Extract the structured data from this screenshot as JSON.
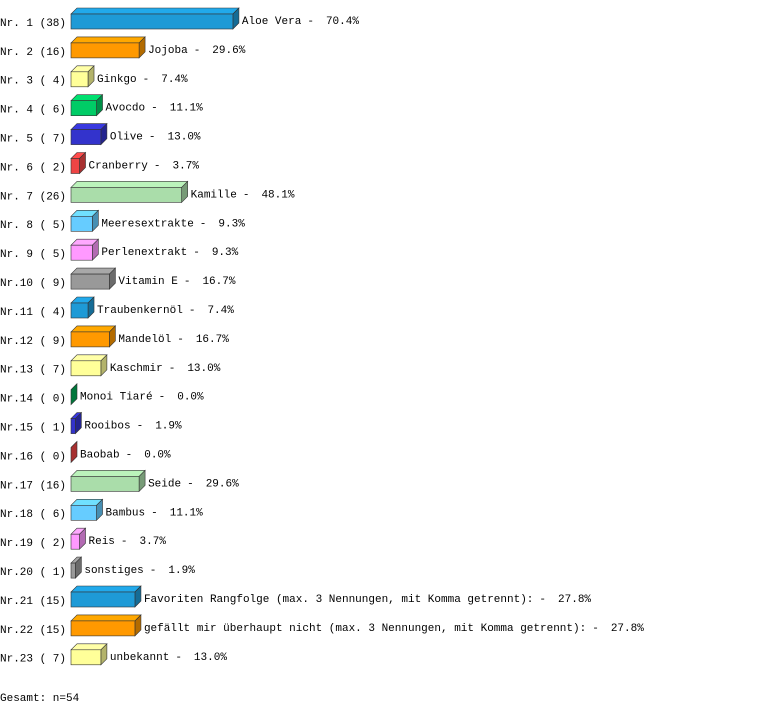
{
  "chart_data": {
    "type": "bar3d",
    "row_labels": [
      "Nr. 1 (38)",
      "Nr. 2 (16)",
      "Nr. 3 ( 4)",
      "Nr. 4 ( 6)",
      "Nr. 5 ( 7)",
      "Nr. 6 ( 2)",
      "Nr. 7 (26)",
      "Nr. 8 ( 5)",
      "Nr. 9 ( 5)",
      "Nr.10 ( 9)",
      "Nr.11 ( 4)",
      "Nr.12 ( 9)",
      "Nr.13 ( 7)",
      "Nr.14 ( 0)",
      "Nr.15 ( 1)",
      "Nr.16 ( 0)",
      "Nr.17 (16)",
      "Nr.18 ( 6)",
      "Nr.19 ( 2)",
      "Nr.20 ( 1)",
      "Nr.21 (15)",
      "Nr.22 (15)",
      "Nr.23 ( 7)"
    ],
    "categories": [
      "Aloe Vera",
      "Jojoba",
      "Ginkgo",
      "Avocdo",
      "Olive",
      "Cranberry",
      "Kamille",
      "Meeresextrakte",
      "Perlenextrakt",
      "Vitamin E",
      "Traubenkernöl",
      "Mandelöl",
      "Kaschmir",
      "Monoi Tiaré",
      "Rooibos",
      "Baobab",
      "Seide",
      "Bambus",
      "Reis",
      "sonstiges",
      "Favoriten Rangfolge (max. 3 Nennungen, mit Komma getrennt):",
      "gefällt mir überhaupt nicht (max. 3 Nennungen, mit Komma getrennt):",
      "unbekannt"
    ],
    "label_separator": "-",
    "values": [
      70.4,
      29.6,
      7.4,
      11.1,
      13.0,
      3.7,
      48.1,
      9.3,
      9.3,
      16.7,
      7.4,
      16.7,
      13.0,
      0.0,
      1.9,
      0.0,
      29.6,
      11.1,
      3.7,
      1.9,
      27.8,
      27.8,
      13.0
    ],
    "value_labels": [
      "70.4%",
      "29.6%",
      "7.4%",
      "11.1%",
      "13.0%",
      "3.7%",
      "48.1%",
      "9.3%",
      "9.3%",
      "16.7%",
      "7.4%",
      "16.7%",
      "13.0%",
      "0.0%",
      "1.9%",
      "0.0%",
      "29.6%",
      "11.1%",
      "3.7%",
      "1.9%",
      "27.8%",
      "27.8%",
      "13.0%"
    ],
    "colors": [
      "#1e9ad6",
      "#ff9900",
      "#ffff99",
      "#00cc66",
      "#3333cc",
      "#ee4444",
      "#aaddaa",
      "#66ccff",
      "#ff99ff",
      "#999999",
      "#1e9ad6",
      "#ff9900",
      "#ffff99",
      "#00aa55",
      "#3333cc",
      "#ee4444",
      "#aaddaa",
      "#66ccff",
      "#ff99ff",
      "#999999",
      "#1e9ad6",
      "#ff9900",
      "#ffff99"
    ],
    "footer": "Gesamt: n=54"
  }
}
